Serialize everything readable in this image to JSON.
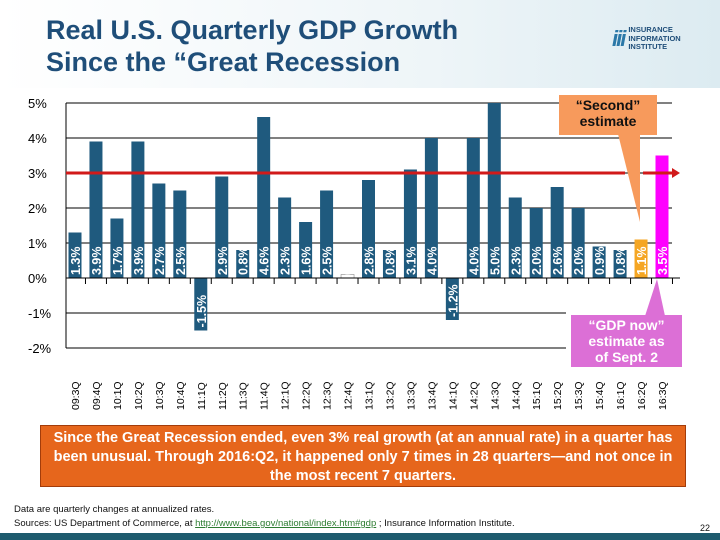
{
  "header": {
    "title_line1": "Real U.S. Quarterly GDP Growth",
    "title_line2": "Since the “Great Recession",
    "logo": {
      "mark": "iii",
      "line1": "INSURANCE",
      "line2": "INFORMATION",
      "line3": "INSTITUTE"
    }
  },
  "chart_data": {
    "type": "bar",
    "categories": [
      "09:3Q",
      "09:4Q",
      "10:1Q",
      "10:2Q",
      "10:3Q",
      "10:4Q",
      "11:1Q",
      "11:2Q",
      "11:3Q",
      "11:4Q",
      "12:1Q",
      "12:2Q",
      "12:3Q",
      "12:4Q",
      "13:1Q",
      "13:2Q",
      "13:3Q",
      "13:4Q",
      "14:1Q",
      "14:2Q",
      "14:3Q",
      "14:4Q",
      "15:1Q",
      "15:2Q",
      "15:3Q",
      "15:4Q",
      "16:1Q",
      "16:2Q",
      "16:3Q"
    ],
    "values": [
      1.3,
      3.9,
      1.7,
      3.9,
      2.7,
      2.5,
      -1.5,
      2.9,
      0.8,
      4.6,
      2.3,
      1.6,
      2.5,
      0.1,
      2.8,
      0.8,
      3.1,
      4.0,
      -1.2,
      4.0,
      5.0,
      2.3,
      2.0,
      2.6,
      2.0,
      0.9,
      0.8,
      1.1,
      3.5
    ],
    "data_labels": [
      "1.3%",
      "3.9%",
      "1.7%",
      "3.9%",
      "2.7%",
      "2.5%",
      "-1.5%",
      "2.9%",
      "0.8%",
      "4.6%",
      "2.3%",
      "1.6%",
      "2.5%",
      "0.1%",
      "2.8%",
      "0.8%",
      "3.1%",
      "4.0%",
      "-1.2%",
      "4.0%",
      "5.0%",
      "2.3%",
      "2.0%",
      "2.6%",
      "2.0%",
      "0.9%",
      "0.8%",
      "1.1%",
      "3.5%"
    ],
    "ylim": [
      -2,
      5
    ],
    "yticks": [
      "5%",
      "4%",
      "3%",
      "2%",
      "1%",
      "0%",
      "-1%",
      "-2%"
    ],
    "ytick_values": [
      5,
      4,
      3,
      2,
      1,
      0,
      -1,
      -2
    ],
    "reference_line": 3,
    "grid": true,
    "colors": {
      "bar": "#1f5a7e",
      "second_estimate": "#f5a623",
      "gdp_now": "#ff00ff",
      "reference_line": "#d11a1a"
    }
  },
  "callouts": {
    "second_estimate": {
      "line1": "“Second”",
      "line2": "estimate"
    },
    "gdp_now": {
      "line1": "“GDP now”",
      "line2": "estimate as",
      "line3": "of Sept. 2"
    }
  },
  "note": "Since the Great Recession ended, even 3% real growth (at an annual rate) in a quarter has been unusual.  Through 2016:Q2, it happened only 7 times in 28 quarters—and not once in the most recent 7 quarters.",
  "footer": {
    "line1": "Data are quarterly changes at annualized rates.",
    "sources_prefix": "Sources: US Department of Commerce, at ",
    "link": "http://www.bea.gov/national/index.htm#gdp",
    "sources_suffix": " ; Insurance Information Institute.",
    "page_number": "22"
  }
}
